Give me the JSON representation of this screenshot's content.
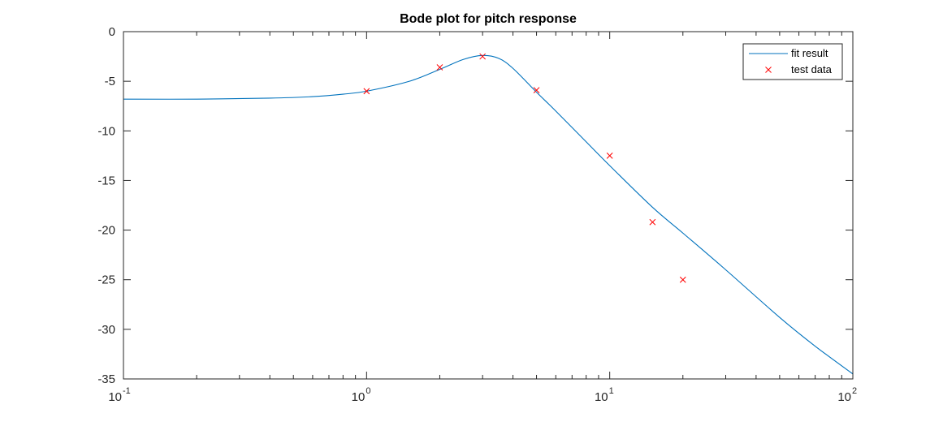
{
  "chart_data": {
    "type": "line",
    "title": "Bode plot for pitch response",
    "xlabel": "",
    "ylabel": "",
    "xscale": "log",
    "xlim": [
      0.1,
      100
    ],
    "ylim": [
      -35,
      0
    ],
    "grid": false,
    "legend_position": "top-right",
    "x_ticks": [
      {
        "base": "10",
        "exp": "-1"
      },
      {
        "base": "10",
        "exp": "0"
      },
      {
        "base": "10",
        "exp": "1"
      },
      {
        "base": "10",
        "exp": "2"
      }
    ],
    "y_ticks": [
      "0",
      "-5",
      "-10",
      "-15",
      "-20",
      "-25",
      "-30",
      "-35"
    ],
    "series": [
      {
        "name": "fit result",
        "kind": "line",
        "color": "#0072BD",
        "x": [
          0.1,
          0.2,
          0.4,
          0.6,
          0.8,
          1.0,
          1.5,
          2.0,
          2.5,
          3.0,
          3.5,
          4.0,
          5.0,
          6.0,
          8.0,
          10,
          15,
          20,
          30,
          50,
          70,
          100
        ],
        "y": [
          -6.8,
          -6.8,
          -6.7,
          -6.55,
          -6.3,
          -6.0,
          -5.0,
          -3.8,
          -2.8,
          -2.4,
          -2.7,
          -3.7,
          -6.1,
          -8.0,
          -11.1,
          -13.5,
          -17.7,
          -20.3,
          -24.0,
          -28.8,
          -31.7,
          -34.5
        ]
      },
      {
        "name": "test data",
        "kind": "markers",
        "color": "#FF0000",
        "marker": "x",
        "x": [
          1,
          2,
          3,
          5,
          10,
          15,
          20
        ],
        "y": [
          -6.0,
          -3.6,
          -2.5,
          -5.9,
          -12.5,
          -19.2,
          -25.0
        ]
      }
    ]
  }
}
